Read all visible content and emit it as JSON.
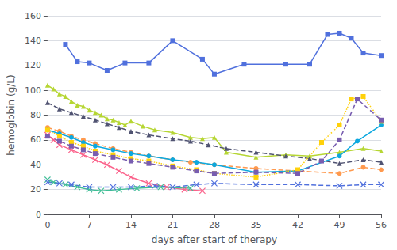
{
  "chart_data": {
    "type": "line",
    "xlabel": "days after start of therapy",
    "ylabel": "hemoglobin (g/L)",
    "xlim": [
      0,
      56
    ],
    "ylim": [
      0,
      160
    ],
    "xticks": [
      0,
      7,
      14,
      21,
      28,
      35,
      42,
      49,
      56
    ],
    "yticks": [
      0,
      20,
      40,
      60,
      80,
      100,
      120,
      140,
      160
    ],
    "grid": "y",
    "series": [
      {
        "x": [
          3,
          5,
          7,
          10,
          13,
          17,
          21,
          26,
          28,
          33,
          40,
          44,
          47,
          49,
          51,
          53,
          56
        ],
        "values": [
          137,
          123,
          122,
          116,
          122,
          122,
          140,
          125,
          113,
          121,
          121,
          121,
          145,
          146,
          142,
          130,
          128
        ],
        "marker": "square",
        "line_style": "solid"
      },
      {
        "x": [
          0,
          1,
          2,
          3,
          4,
          5,
          6,
          7,
          8,
          9,
          10,
          11,
          12,
          13,
          14,
          16,
          18,
          21,
          24,
          26,
          28,
          30,
          35,
          40,
          44,
          49,
          53,
          56
        ],
        "values": [
          104,
          101,
          97,
          95,
          91,
          88,
          87,
          84,
          82,
          80,
          77,
          76,
          74,
          72,
          75,
          71,
          68,
          66,
          62,
          61,
          62,
          50,
          46,
          48,
          47,
          50,
          53,
          51
        ],
        "marker": "triangle",
        "line_style": "solid"
      },
      {
        "x": [
          0,
          2,
          4,
          6,
          8,
          10,
          12,
          14,
          17,
          21,
          24,
          27,
          30,
          35,
          40,
          44,
          49,
          53,
          56
        ],
        "values": [
          90,
          85,
          82,
          79,
          76,
          73,
          70,
          67,
          64,
          61,
          59,
          56,
          53,
          50,
          47,
          45,
          41,
          44,
          42
        ],
        "marker": "triangle",
        "line_style": "dashed"
      },
      {
        "x": [
          0,
          2,
          4,
          6,
          8,
          11,
          14,
          17,
          21,
          24,
          28,
          35,
          42,
          49,
          53,
          56
        ],
        "values": [
          70,
          67,
          63,
          60,
          57,
          53,
          50,
          47,
          44,
          42,
          40,
          37,
          35,
          33,
          38,
          36
        ],
        "marker": "circle",
        "line_style": "dashed"
      },
      {
        "x": [
          0,
          2,
          4,
          6,
          8,
          11,
          14,
          17,
          21,
          25,
          28,
          35,
          42,
          49,
          52,
          56
        ],
        "values": [
          68,
          65,
          62,
          58,
          55,
          52,
          49,
          47,
          44,
          42,
          40,
          34,
          35,
          47,
          59,
          72
        ],
        "marker": "circle",
        "line_style": "solid"
      },
      {
        "x": [
          0,
          2,
          4,
          6,
          8,
          11,
          14,
          17,
          21,
          25,
          28,
          35,
          42,
          46,
          49,
          51,
          53,
          56
        ],
        "values": [
          68,
          63,
          58,
          55,
          51,
          48,
          45,
          43,
          39,
          36,
          33,
          30,
          36,
          58,
          72,
          93,
          95,
          75
        ],
        "marker": "square",
        "line_style": "dotted"
      },
      {
        "x": [
          0,
          1,
          2,
          4,
          6,
          8,
          10,
          12,
          14,
          17,
          20,
          23,
          26
        ],
        "values": [
          64,
          60,
          56,
          52,
          48,
          44,
          40,
          35,
          30,
          25,
          22,
          20,
          19
        ],
        "marker": "x",
        "line_style": "solid"
      },
      {
        "x": [
          0,
          2,
          4,
          6,
          8,
          11,
          14,
          17,
          21,
          25,
          28,
          35,
          42,
          46,
          49,
          52,
          56
        ],
        "values": [
          63,
          59,
          55,
          52,
          49,
          46,
          43,
          41,
          38,
          35,
          33,
          34,
          33,
          43,
          60,
          93,
          76
        ],
        "marker": "square",
        "line_style": "dashed"
      },
      {
        "x": [
          0,
          1,
          3,
          5,
          7,
          9,
          12,
          15,
          19,
          24
        ],
        "values": [
          28,
          26,
          24,
          22,
          20,
          19,
          20,
          21,
          22,
          21
        ],
        "marker": "x",
        "line_style": "solid"
      },
      {
        "x": [
          0,
          2,
          4,
          7,
          11,
          14,
          18,
          21,
          25,
          28,
          35,
          42,
          49,
          53,
          56
        ],
        "values": [
          26,
          25,
          24,
          22,
          22,
          22,
          23,
          22,
          24,
          25,
          24,
          24,
          23,
          24,
          24
        ],
        "marker": "x",
        "line_style": "dashed"
      }
    ]
  }
}
